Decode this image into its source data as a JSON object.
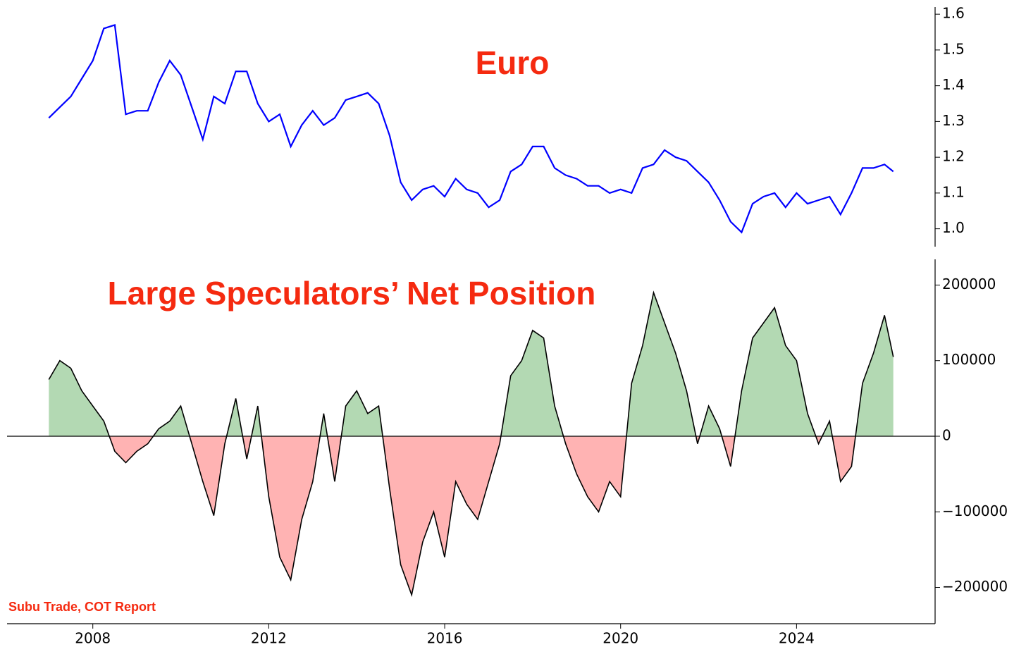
{
  "chart_data": [
    {
      "type": "line",
      "title": "Euro",
      "color": "#0000ff",
      "x": [
        2007.0,
        2007.25,
        2007.5,
        2007.75,
        2008.0,
        2008.25,
        2008.5,
        2008.75,
        2009.0,
        2009.25,
        2009.5,
        2009.75,
        2010.0,
        2010.25,
        2010.5,
        2010.75,
        2011.0,
        2011.25,
        2011.5,
        2011.75,
        2012.0,
        2012.25,
        2012.5,
        2012.75,
        2013.0,
        2013.25,
        2013.5,
        2013.75,
        2014.0,
        2014.25,
        2014.5,
        2014.75,
        2015.0,
        2015.25,
        2015.5,
        2015.75,
        2016.0,
        2016.25,
        2016.5,
        2016.75,
        2017.0,
        2017.25,
        2017.5,
        2017.75,
        2018.0,
        2018.25,
        2018.5,
        2018.75,
        2019.0,
        2019.25,
        2019.5,
        2019.75,
        2020.0,
        2020.25,
        2020.5,
        2020.75,
        2021.0,
        2021.25,
        2021.5,
        2021.75,
        2022.0,
        2022.25,
        2022.5,
        2022.75,
        2023.0,
        2023.25,
        2023.5,
        2023.75,
        2024.0,
        2024.25,
        2024.5,
        2024.75,
        2025.0,
        2025.25,
        2025.5,
        2025.75,
        2026.0,
        2026.2
      ],
      "values": [
        1.31,
        1.34,
        1.37,
        1.42,
        1.47,
        1.56,
        1.57,
        1.32,
        1.33,
        1.33,
        1.41,
        1.47,
        1.43,
        1.34,
        1.25,
        1.37,
        1.35,
        1.44,
        1.44,
        1.35,
        1.3,
        1.32,
        1.23,
        1.29,
        1.33,
        1.29,
        1.31,
        1.36,
        1.37,
        1.38,
        1.35,
        1.26,
        1.13,
        1.08,
        1.11,
        1.12,
        1.09,
        1.14,
        1.11,
        1.1,
        1.06,
        1.08,
        1.16,
        1.18,
        1.23,
        1.23,
        1.17,
        1.15,
        1.14,
        1.12,
        1.12,
        1.1,
        1.11,
        1.1,
        1.17,
        1.18,
        1.22,
        1.2,
        1.19,
        1.16,
        1.13,
        1.08,
        1.02,
        0.99,
        1.07,
        1.09,
        1.1,
        1.06,
        1.1,
        1.07,
        1.08,
        1.09,
        1.04,
        1.1,
        1.17,
        1.17,
        1.18,
        1.16
      ],
      "xlim": [
        2006.05,
        2027.15
      ],
      "ylim": [
        0.95,
        1.62
      ],
      "yticks": [
        {
          "value": 1,
          "label": "1.0"
        },
        1.1,
        1.2,
        1.3,
        1.4,
        1.5,
        1.6
      ]
    },
    {
      "type": "area",
      "title": "Large Speculators’ Net Position",
      "color": "#000000",
      "positive_color": "#b3d9b3",
      "negative_color": "#ffb3b3",
      "x": [
        2007.0,
        2007.25,
        2007.5,
        2007.75,
        2008.0,
        2008.25,
        2008.5,
        2008.75,
        2009.0,
        2009.25,
        2009.5,
        2009.75,
        2010.0,
        2010.25,
        2010.5,
        2010.75,
        2011.0,
        2011.25,
        2011.5,
        2011.75,
        2012.0,
        2012.25,
        2012.5,
        2012.75,
        2013.0,
        2013.25,
        2013.5,
        2013.75,
        2014.0,
        2014.25,
        2014.5,
        2014.75,
        2015.0,
        2015.25,
        2015.5,
        2015.75,
        2016.0,
        2016.25,
        2016.5,
        2016.75,
        2017.0,
        2017.25,
        2017.5,
        2017.75,
        2018.0,
        2018.25,
        2018.5,
        2018.75,
        2019.0,
        2019.25,
        2019.5,
        2019.75,
        2020.0,
        2020.25,
        2020.5,
        2020.75,
        2021.0,
        2021.25,
        2021.5,
        2021.75,
        2022.0,
        2022.25,
        2022.5,
        2022.75,
        2023.0,
        2023.25,
        2023.5,
        2023.75,
        2024.0,
        2024.25,
        2024.5,
        2024.75,
        2025.0,
        2025.25,
        2025.5,
        2025.75,
        2026.0,
        2026.2
      ],
      "values": [
        75000,
        100000,
        90000,
        60000,
        40000,
        20000,
        -20000,
        -35000,
        -20000,
        -10000,
        10000,
        20000,
        40000,
        -10000,
        -60000,
        -105000,
        -10000,
        50000,
        -30000,
        40000,
        -80000,
        -160000,
        -190000,
        -110000,
        -60000,
        30000,
        -60000,
        40000,
        60000,
        30000,
        40000,
        -70000,
        -170000,
        -210000,
        -140000,
        -100000,
        -160000,
        -60000,
        -90000,
        -110000,
        -60000,
        -10000,
        80000,
        100000,
        140000,
        130000,
        40000,
        -10000,
        -50000,
        -80000,
        -100000,
        -60000,
        -80000,
        70000,
        120000,
        190000,
        150000,
        110000,
        60000,
        -10000,
        40000,
        10000,
        -40000,
        60000,
        130000,
        150000,
        170000,
        120000,
        100000,
        30000,
        -10000,
        20000,
        -60000,
        -40000,
        70000,
        110000,
        160000,
        105000
      ],
      "xlim": [
        2006.05,
        2027.15
      ],
      "ylim": [
        -248000,
        234000
      ],
      "xticks": [
        2008,
        2012,
        2016,
        2020,
        2024
      ],
      "yticks": [
        {
          "value": -200000,
          "label": "−200000"
        },
        {
          "value": -100000,
          "label": "−100000"
        },
        0,
        100000,
        200000
      ]
    }
  ],
  "source": "Subu Trade, COT Report"
}
